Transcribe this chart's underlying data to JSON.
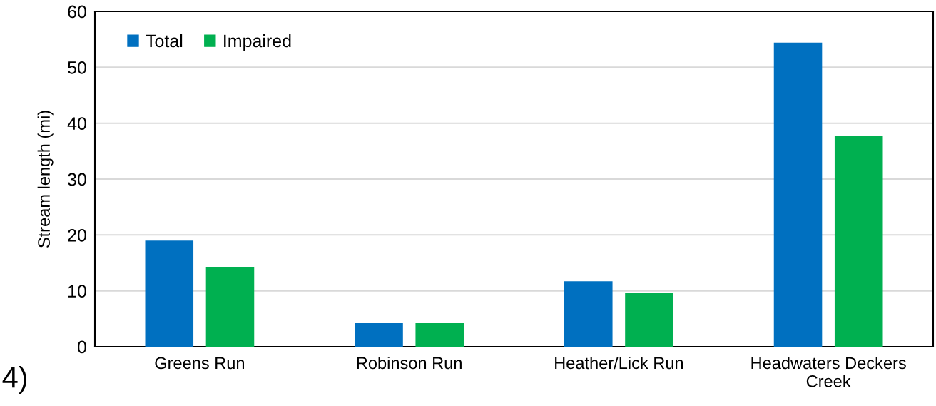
{
  "chart_data": {
    "type": "bar",
    "ylabel": "Stream length (mi)",
    "categories": [
      "Greens Run",
      "Robinson Run",
      "Heather/Lick Run",
      "Headwaters Deckers\nCreek"
    ],
    "series": [
      {
        "name": "Total",
        "color": "#0070c0",
        "values": [
          19.0,
          4.3,
          11.7,
          54.4
        ]
      },
      {
        "name": "Impaired",
        "color": "#00b050",
        "values": [
          14.3,
          4.3,
          9.7,
          37.7
        ]
      }
    ],
    "ylim": [
      0,
      60
    ],
    "yticks": [
      0,
      10,
      20,
      30,
      40,
      50,
      60
    ],
    "grid": "y",
    "legend": "top left",
    "annotations": [
      "4)"
    ]
  }
}
